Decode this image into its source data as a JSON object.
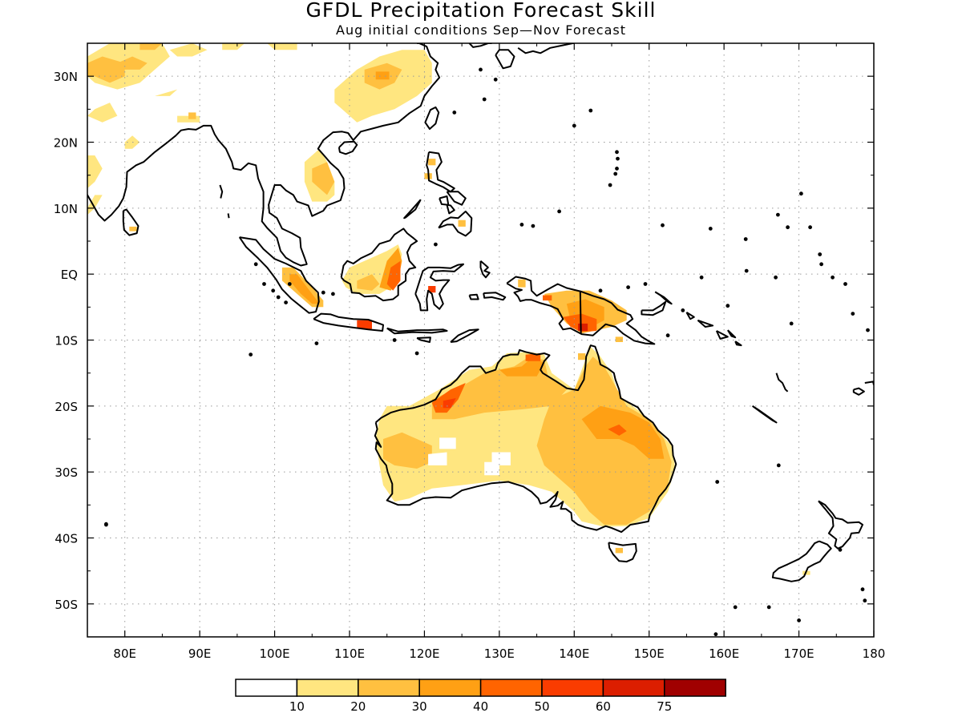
{
  "title": "GFDL Precipitation Forecast Skill",
  "subtitle": "Aug initial conditions  Sep—Nov Forecast",
  "map": {
    "lon_range": [
      75,
      180
    ],
    "lat_range": [
      -55,
      35
    ],
    "lon_ticks": [
      {
        "value": 80,
        "label": "80E"
      },
      {
        "value": 90,
        "label": "90E"
      },
      {
        "value": 100,
        "label": "100E"
      },
      {
        "value": 110,
        "label": "110E"
      },
      {
        "value": 120,
        "label": "120E"
      },
      {
        "value": 130,
        "label": "130E"
      },
      {
        "value": 140,
        "label": "140E"
      },
      {
        "value": 150,
        "label": "150E"
      },
      {
        "value": 160,
        "label": "160E"
      },
      {
        "value": 170,
        "label": "170E"
      },
      {
        "value": 180,
        "label": "180"
      }
    ],
    "lat_ticks": [
      {
        "value": 30,
        "label": "30N"
      },
      {
        "value": 20,
        "label": "20N"
      },
      {
        "value": 10,
        "label": "10N"
      },
      {
        "value": 0,
        "label": "EQ"
      },
      {
        "value": -10,
        "label": "10S"
      },
      {
        "value": -20,
        "label": "20S"
      },
      {
        "value": -30,
        "label": "30S"
      },
      {
        "value": -40,
        "label": "40S"
      },
      {
        "value": -50,
        "label": "50S"
      }
    ],
    "grid": true
  },
  "colorbar": {
    "colors": [
      "#ffffff",
      "#ffe680",
      "#ffc040",
      "#ffa014",
      "#ff6400",
      "#fa3c00",
      "#dc1e00",
      "#a00000"
    ],
    "labels": [
      "10",
      "20",
      "30",
      "40",
      "50",
      "60",
      "75"
    ]
  },
  "colors": {
    "c1": "#ffe680",
    "c2": "#ffc040",
    "c3": "#ffa014",
    "c4": "#ff6400",
    "c5": "#fa3c00",
    "c6": "#dc1e00"
  }
}
